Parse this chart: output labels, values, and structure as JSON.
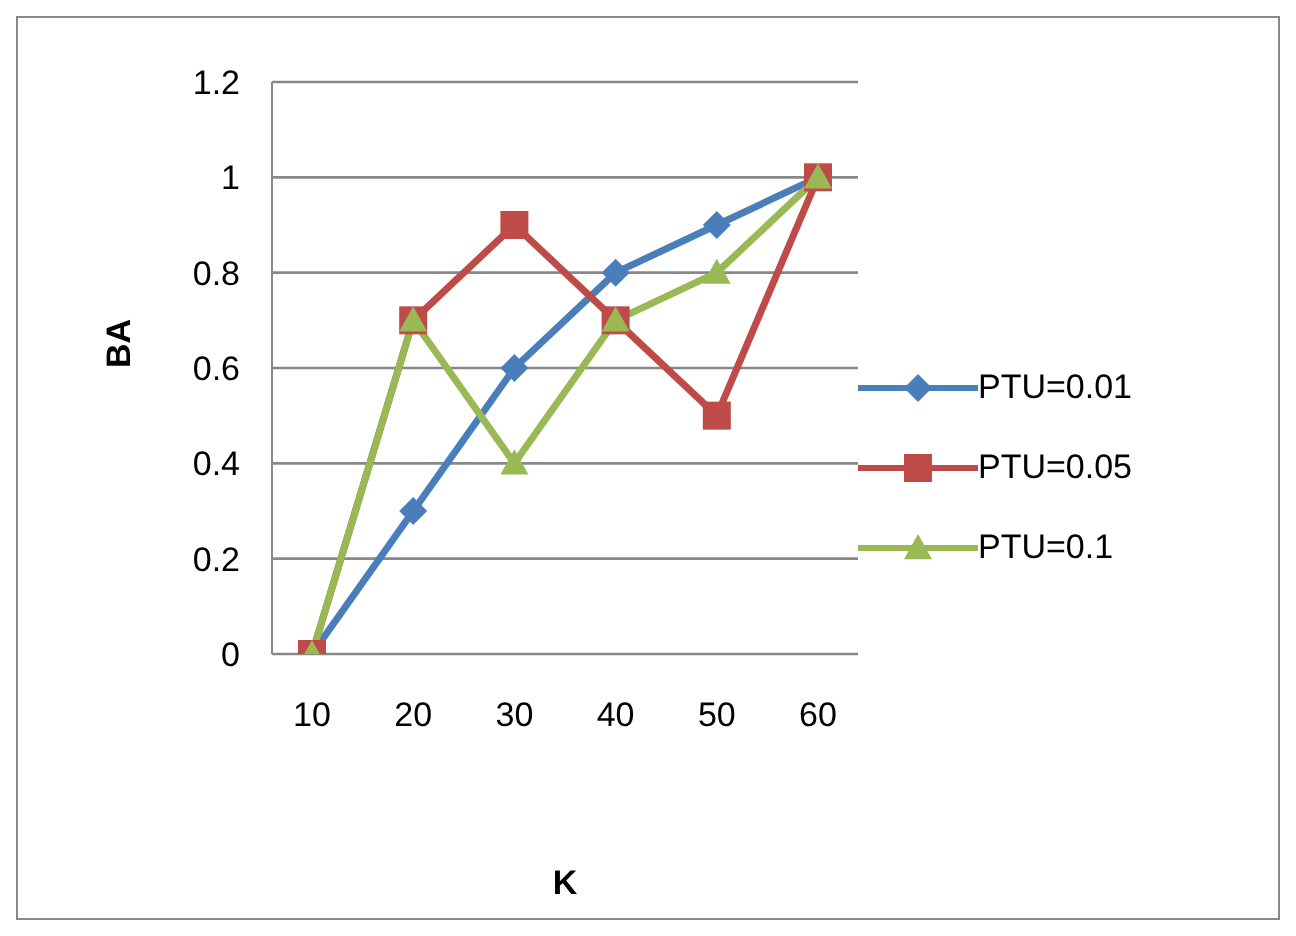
{
  "chart_data": {
    "type": "line",
    "xlabel": "K",
    "ylabel": "BA",
    "categories": [
      "10",
      "20",
      "30",
      "40",
      "50",
      "60"
    ],
    "series": [
      {
        "name": "PTU=0.01",
        "color": "#4a7ebb",
        "marker": "diamond",
        "values": [
          0,
          0.3,
          0.6,
          0.8,
          0.9,
          1
        ]
      },
      {
        "name": "PTU=0.05",
        "color": "#be4b48",
        "marker": "square",
        "values": [
          0,
          0.7,
          0.9,
          0.7,
          0.5,
          1
        ]
      },
      {
        "name": "PTU=0.1",
        "color": "#98b954",
        "marker": "triangle",
        "values": [
          0,
          0.7,
          0.4,
          0.7,
          0.8,
          1
        ]
      }
    ],
    "ylim": [
      0,
      1.2
    ],
    "yticks": [
      0,
      0.2,
      0.4,
      0.6,
      0.8,
      1,
      1.2
    ],
    "grid": "y",
    "legend": "right"
  }
}
